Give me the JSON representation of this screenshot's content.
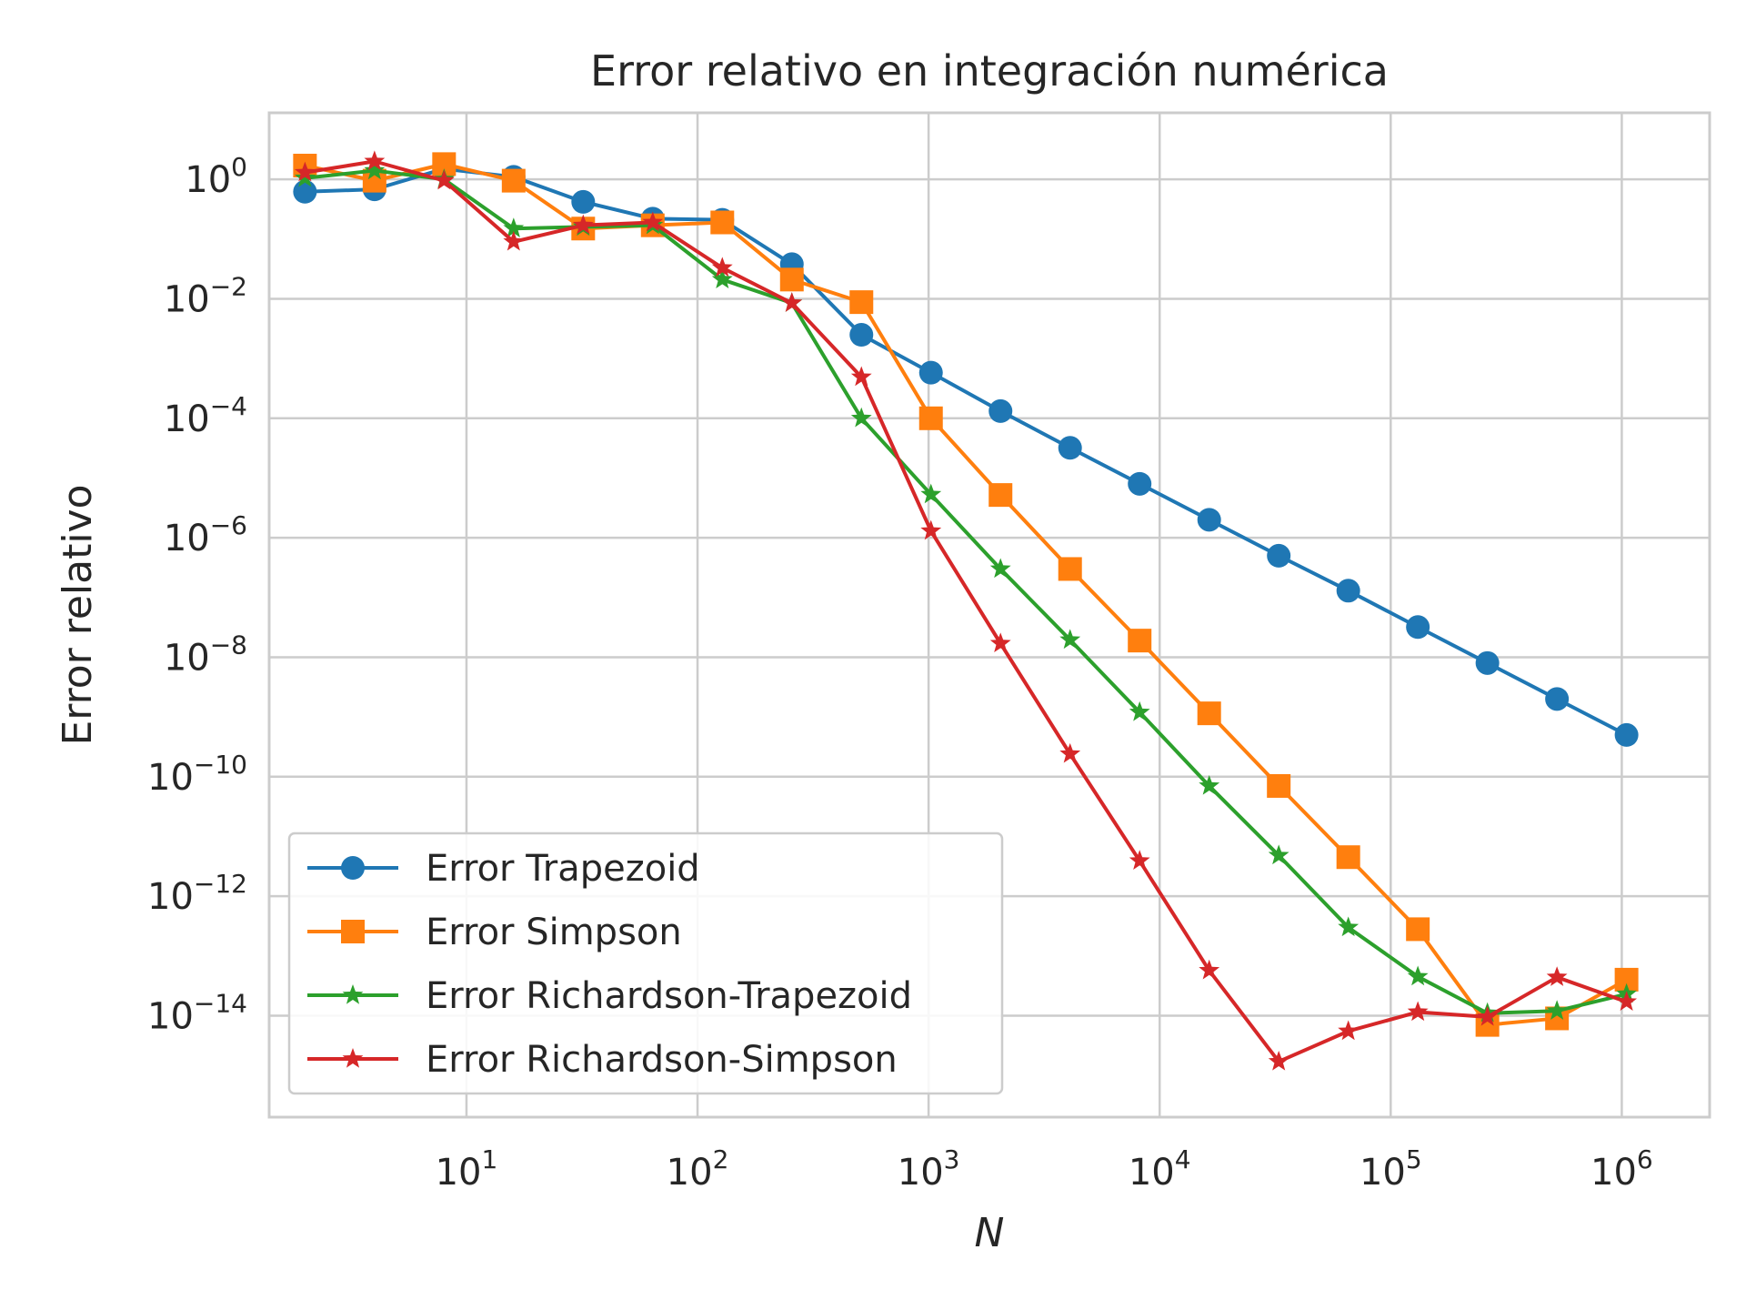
{
  "chart_data": {
    "type": "line",
    "title": "Error relativo en integración numérica",
    "xlabel": "N",
    "ylabel": "Error relativo",
    "xscale": "log",
    "yscale": "log",
    "xlim": [
      1.4,
      2400000
    ],
    "ylim": [
      2e-16,
      13
    ],
    "x_ticks": [
      {
        "base": "10",
        "exp": "1",
        "value": 10
      },
      {
        "base": "10",
        "exp": "2",
        "value": 100
      },
      {
        "base": "10",
        "exp": "3",
        "value": 1000
      },
      {
        "base": "10",
        "exp": "4",
        "value": 10000
      },
      {
        "base": "10",
        "exp": "5",
        "value": 100000
      },
      {
        "base": "10",
        "exp": "6",
        "value": 1000000
      }
    ],
    "y_ticks": [
      {
        "base": "10",
        "exp": "0",
        "value": 1
      },
      {
        "base": "10",
        "exp": "−2",
        "value": 0.01
      },
      {
        "base": "10",
        "exp": "−4",
        "value": 0.0001
      },
      {
        "base": "10",
        "exp": "−6",
        "value": 1e-06
      },
      {
        "base": "10",
        "exp": "−8",
        "value": 1e-08
      },
      {
        "base": "10",
        "exp": "−10",
        "value": 1e-10
      },
      {
        "base": "10",
        "exp": "−12",
        "value": 1e-12
      },
      {
        "base": "10",
        "exp": "−14",
        "value": 1e-14
      }
    ],
    "grid": true,
    "legend_position": "lower-left",
    "x": [
      2,
      4,
      8,
      16,
      32,
      64,
      128,
      256,
      512,
      1024,
      2048,
      4096,
      8192,
      16384,
      32768,
      65536,
      131072,
      262144,
      524288,
      1048576
    ],
    "series": [
      {
        "name": "Error Trapezoid",
        "color": "#1f77b4",
        "marker": "circle",
        "values": [
          0.62,
          0.68,
          1.5,
          1.1,
          0.42,
          0.22,
          0.21,
          0.038,
          0.0025,
          0.00058,
          0.000132,
          3.2e-05,
          8e-06,
          2e-06,
          5e-07,
          1.3e-07,
          3.2e-08,
          8e-09,
          2e-09,
          5e-10
        ]
      },
      {
        "name": "Error Simpson",
        "color": "#ff7f0e",
        "marker": "square",
        "values": [
          1.7,
          0.95,
          1.8,
          0.95,
          0.15,
          0.17,
          0.19,
          0.021,
          0.0088,
          0.0001,
          5.2e-06,
          3e-07,
          1.9e-08,
          1.15e-09,
          7e-11,
          4.5e-12,
          2.8e-13,
          7e-15,
          9e-15,
          4e-14
        ]
      },
      {
        "name": "Error Richardson-Trapezoid",
        "color": "#2ca02c",
        "marker": "star",
        "values": [
          1.05,
          1.4,
          1.0,
          0.15,
          0.16,
          0.17,
          0.021,
          0.0085,
          0.0001,
          5.3e-06,
          3e-07,
          1.95e-08,
          1.2e-09,
          7e-11,
          4.8e-12,
          3e-13,
          4.5e-14,
          1.1e-14,
          1.2e-14,
          2.3e-14
        ]
      },
      {
        "name": "Error Richardson-Simpson",
        "color": "#d62728",
        "marker": "star",
        "values": [
          1.3,
          2.0,
          0.95,
          0.09,
          0.17,
          0.19,
          0.033,
          0.0085,
          0.00049,
          1.3e-06,
          1.7e-08,
          2.4e-10,
          3.9e-12,
          5.7e-14,
          1.7e-15,
          5.5e-15,
          1.15e-14,
          9.5e-15,
          4.4e-14,
          1.7e-14
        ]
      }
    ]
  }
}
